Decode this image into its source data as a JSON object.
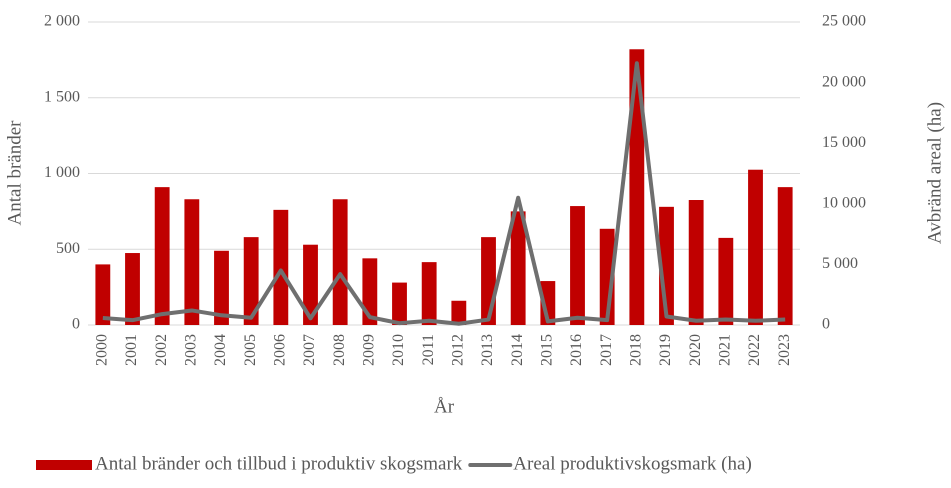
{
  "chart_data": {
    "type": "bar",
    "x_label": "År",
    "y_label": "Antal bränder",
    "y2_label": "Avbränd areal (ha)",
    "categories": [
      "2000",
      "2001",
      "2002",
      "2003",
      "2004",
      "2005",
      "2006",
      "2007",
      "2008",
      "2009",
      "2010",
      "2011",
      "2012",
      "2013",
      "2014",
      "2015",
      "2016",
      "2017",
      "2018",
      "2019",
      "2020",
      "2021",
      "2022",
      "2023"
    ],
    "series": [
      {
        "name": "Antal bränder och tillbud i produktiv skogsmark",
        "type": "bar",
        "color": "#c00000",
        "values": [
          400,
          475,
          910,
          830,
          490,
          580,
          760,
          530,
          830,
          440,
          280,
          415,
          160,
          580,
          750,
          290,
          785,
          635,
          1820,
          780,
          825,
          575,
          1025,
          910
        ]
      },
      {
        "name": "Areal produktivskogsmark (ha)",
        "type": "line",
        "axis": "y2",
        "color": "#6f6f6f",
        "values": [
          580,
          400,
          900,
          1200,
          800,
          600,
          4500,
          550,
          4200,
          650,
          150,
          350,
          100,
          450,
          10500,
          300,
          600,
          400,
          21600,
          700,
          350,
          450,
          350,
          450
        ]
      }
    ],
    "ylim": [
      0,
      2000
    ],
    "yticks": [
      0,
      500,
      {
        "value": 1000,
        "label": "1 000"
      },
      {
        "value": 1500,
        "label": "1 500"
      },
      {
        "value": 2000,
        "label": "2 000"
      }
    ],
    "y2lim": [
      0,
      25000
    ],
    "y2ticks": [
      0,
      {
        "value": 5000,
        "label": "5 000"
      },
      {
        "value": 10000,
        "label": "10 000"
      },
      {
        "value": 15000,
        "label": "15 000"
      },
      {
        "value": 20000,
        "label": "20 000"
      },
      {
        "value": 25000,
        "label": "25 000"
      }
    ],
    "grid": true,
    "legend": "bottom"
  }
}
